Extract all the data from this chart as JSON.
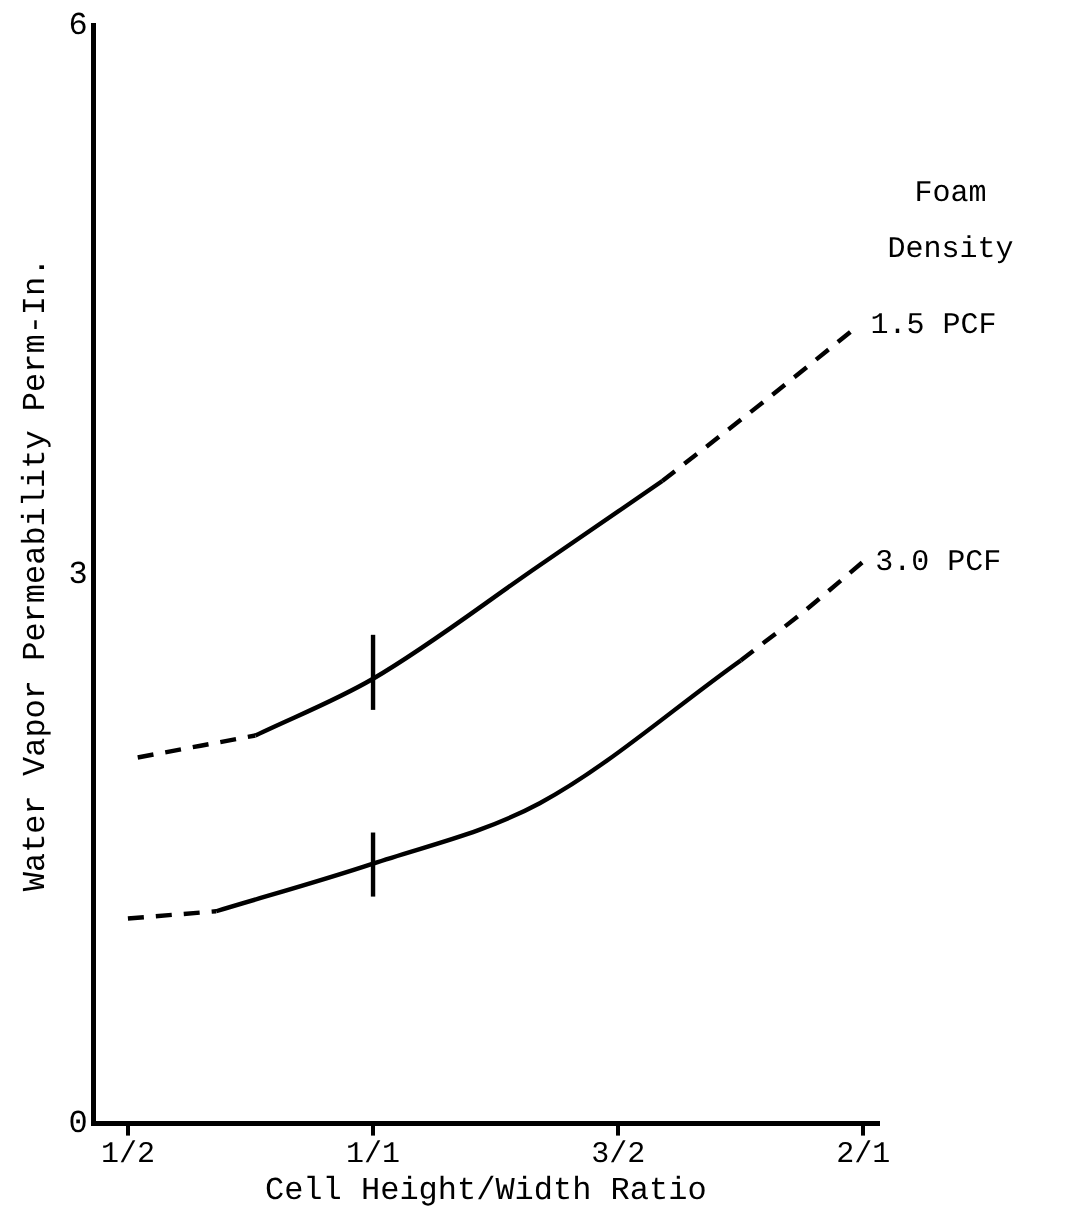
{
  "chart_data": {
    "type": "line",
    "xlabel": "Cell Height/Width Ratio",
    "ylabel": "Water Vapor Permeability Perm-In.",
    "legend_title": "Foam Density",
    "xlim": [
      0.43,
      2.03
    ],
    "xticks": [
      {
        "value": 0.5,
        "label": "1/2"
      },
      {
        "value": 1,
        "label": "1/1"
      },
      {
        "value": 1.5,
        "label": "3/2"
      },
      {
        "value": 2,
        "label": "2/1"
      }
    ],
    "ylim": [
      0,
      6
    ],
    "yticks": [
      0,
      3,
      6
    ],
    "grid": false,
    "legend": false,
    "marker": "none",
    "series": [
      {
        "color": "#000000",
        "line_style": "dashed",
        "x": [
          0.52,
          0.76
        ],
        "values": [
          2.0,
          2.12
        ]
      },
      {
        "color": "#000000",
        "line_style": "solid",
        "x": [
          0.76,
          1.0,
          1.34,
          1.59
        ],
        "values": [
          2.12,
          2.43,
          3.05,
          3.51
        ],
        "errors": [
          null,
          [
            2.26,
            2.67
          ],
          null,
          null
        ]
      },
      {
        "name": "1.5 PCF",
        "color": "#000000",
        "line_style": "dashed",
        "x": [
          1.59,
          1.8,
          1.99
        ],
        "values": [
          3.51,
          3.95,
          4.36
        ]
      },
      {
        "color": "#000000",
        "line_style": "dashed",
        "x": [
          0.5,
          0.68
        ],
        "values": [
          1.12,
          1.16
        ]
      },
      {
        "color": "#000000",
        "line_style": "solid",
        "x": [
          0.68,
          1.0,
          1.34,
          1.75
        ],
        "values": [
          1.16,
          1.42,
          1.75,
          2.53
        ],
        "errors": [
          null,
          [
            1.24,
            1.59
          ],
          null,
          null
        ]
      },
      {
        "name": "3.0 PCF",
        "color": "#000000",
        "line_style": "dashed",
        "x": [
          1.75,
          1.88,
          2.0
        ],
        "values": [
          2.53,
          2.8,
          3.07
        ]
      }
    ]
  }
}
